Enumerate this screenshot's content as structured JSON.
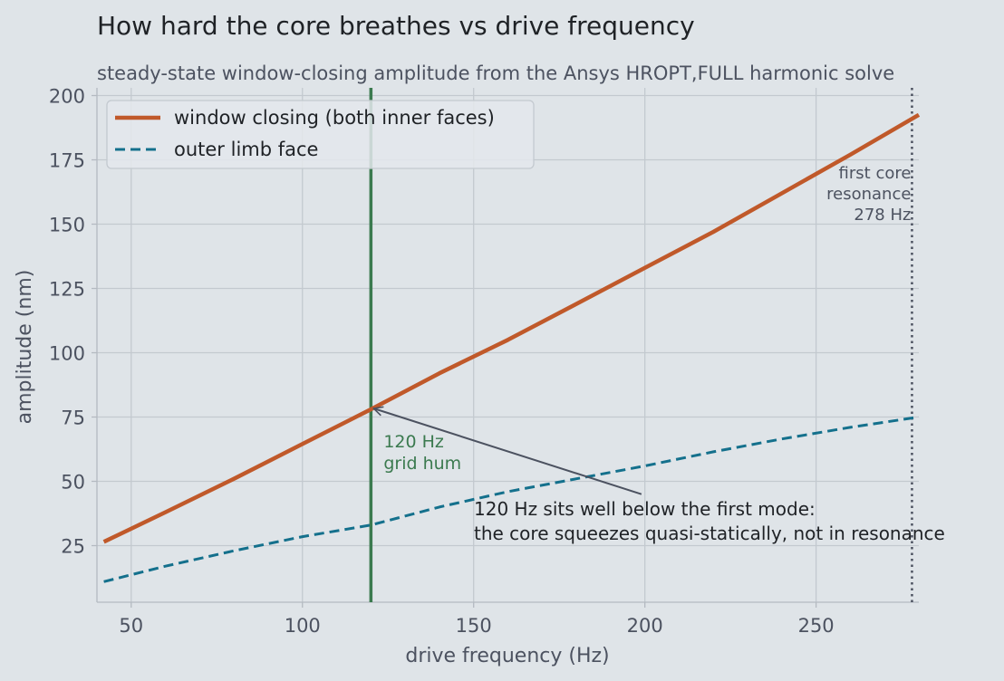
{
  "chart_data": {
    "type": "line",
    "title": "How hard the core breathes vs drive frequency",
    "subtitle": "steady-state window-closing amplitude from the Ansys HROPT,FULL harmonic solve",
    "xlabel": "drive frequency  (Hz)",
    "ylabel": "amplitude  (nm)",
    "xlim": [
      40,
      280
    ],
    "ylim": [
      3,
      203
    ],
    "x_ticks": [
      50,
      100,
      150,
      200,
      250
    ],
    "y_ticks": [
      25,
      50,
      75,
      100,
      125,
      150,
      175,
      200
    ],
    "grid": true,
    "legend_position": "top-left",
    "series": [
      {
        "name": "window closing (both inner faces)",
        "style": "solid",
        "color": "#c0592a",
        "x": [
          42,
          60,
          80,
          100,
          120,
          140,
          160,
          180,
          200,
          220,
          240,
          260,
          280
        ],
        "y": [
          26.5,
          38,
          51,
          64.5,
          78,
          92,
          105,
          119,
          133,
          147,
          162,
          177,
          192.5
        ]
      },
      {
        "name": "outer limb face",
        "style": "dashed",
        "color": "#14708c",
        "x": [
          42,
          60,
          80,
          100,
          120,
          140,
          160,
          180,
          200,
          220,
          240,
          260,
          280
        ],
        "y": [
          11,
          17,
          23,
          28.5,
          33,
          40,
          46,
          51,
          56,
          61.5,
          66.5,
          71,
          75
        ]
      }
    ],
    "vertical_lines": [
      {
        "x": 120,
        "style": "solid",
        "color": "#3b7a4f",
        "label": [
          "120 Hz",
          "grid hum"
        ]
      },
      {
        "x": 278,
        "style": "dotted",
        "color": "#4c5260",
        "label": [
          "first core",
          "resonance",
          "278 Hz"
        ]
      }
    ],
    "annotations": [
      {
        "lines": [
          "120 Hz sits well below the first mode:",
          "the core squeezes quasi-statically, not in resonance"
        ],
        "arrow_to": {
          "x": 120,
          "y": 78
        },
        "arrow_from": {
          "x": 199,
          "y": 45
        }
      }
    ]
  }
}
